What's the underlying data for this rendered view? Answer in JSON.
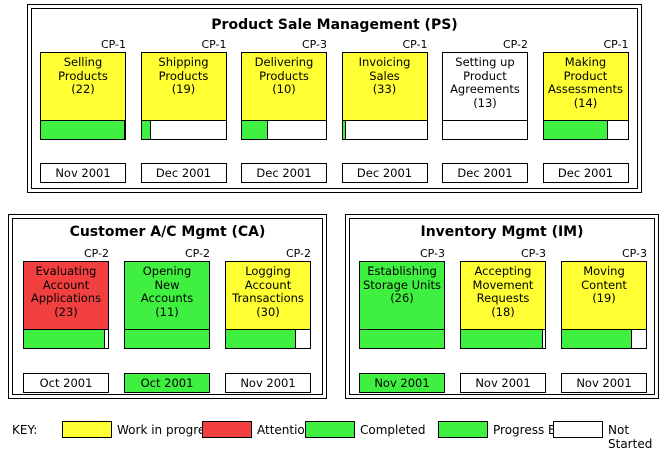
{
  "colors": {
    "work_in_progress": "#ffff33",
    "attention": "#f24040",
    "completed": "#40f040",
    "not_started": "#ffffff"
  },
  "groups": [
    {
      "title": "Product Sale Management (PS)",
      "cards": [
        {
          "cp": "CP-1",
          "name": [
            "Selling",
            "Products"
          ],
          "count": "(22)",
          "pct_label": "99%",
          "progress": 0.99,
          "status": "work_in_progress",
          "date": "Nov 2001"
        },
        {
          "cp": "CP-1",
          "name": [
            "Shipping",
            "Products"
          ],
          "count": "(19)",
          "pct_label": "10%",
          "progress": 0.1,
          "status": "work_in_progress",
          "date": "Dec 2001"
        },
        {
          "cp": "CP-3",
          "name": [
            "Delivering",
            "Products"
          ],
          "count": "(10)",
          "pct_label": "30%",
          "progress": 0.3,
          "status": "work_in_progress",
          "date": "Dec 2001"
        },
        {
          "cp": "CP-1",
          "name": [
            "Invoicing",
            "Sales"
          ],
          "count": "(33)",
          "pct_label": "3%",
          "progress": 0.03,
          "status": "work_in_progress",
          "date": "Dec 2001"
        },
        {
          "cp": "CP-2",
          "name": [
            "Setting up",
            "Product",
            "Agreements"
          ],
          "count": "(13)",
          "pct_label": "",
          "progress": 0,
          "status": "not_started",
          "date": "Dec 2001"
        },
        {
          "cp": "CP-1",
          "name": [
            "Making",
            "Product",
            "Assessments"
          ],
          "count": "(14)",
          "pct_label": "75%",
          "progress": 0.75,
          "status": "work_in_progress",
          "date": "Dec 2001"
        }
      ]
    },
    {
      "title": "Customer A/C Mgmt (CA)",
      "cards": [
        {
          "cp": "CP-2",
          "name": [
            "Evaluating",
            "Account",
            "Applications"
          ],
          "count": "(23)",
          "pct_label": "95%",
          "progress": 0.95,
          "status": "attention",
          "date": "Oct 2001"
        },
        {
          "cp": "CP-2",
          "name": [
            "Opening",
            "New",
            "Accounts"
          ],
          "count": "(11)",
          "pct_label": "100%",
          "progress": 1.0,
          "status": "completed",
          "date": "Oct 2001"
        },
        {
          "cp": "CP-2",
          "name": [
            "Logging",
            "Account",
            "Transactions"
          ],
          "count": "(30)",
          "pct_label": "82%",
          "progress": 0.82,
          "status": "work_in_progress",
          "date": "Nov 2001"
        }
      ]
    },
    {
      "title": "Inventory Mgmt (IM)",
      "cards": [
        {
          "cp": "CP-3",
          "name": [
            "Establishing",
            "Storage Units"
          ],
          "count": "(26)",
          "pct_label": "100%",
          "progress": 1.0,
          "status": "completed",
          "date": "Nov 2001"
        },
        {
          "cp": "CP-3",
          "name": [
            "Accepting",
            "Movement",
            "Requests"
          ],
          "count": "(18)",
          "pct_label": "97%",
          "progress": 0.97,
          "status": "work_in_progress",
          "date": "Nov 2001"
        },
        {
          "cp": "CP-3",
          "name": [
            "Moving",
            "Content"
          ],
          "count": "(19)",
          "pct_label": "82%",
          "progress": 0.82,
          "status": "work_in_progress",
          "date": "Nov 2001"
        }
      ]
    }
  ],
  "key": {
    "label": "KEY:",
    "items": [
      {
        "label": "Work in progress",
        "color": "#ffff33"
      },
      {
        "label": "Attention",
        "color": "#f24040"
      },
      {
        "label": "Completed",
        "color": "#40f040"
      },
      {
        "label": "Progress Bar",
        "color": "#40f040"
      },
      {
        "label": "Not Started",
        "color": "#ffffff"
      }
    ]
  }
}
